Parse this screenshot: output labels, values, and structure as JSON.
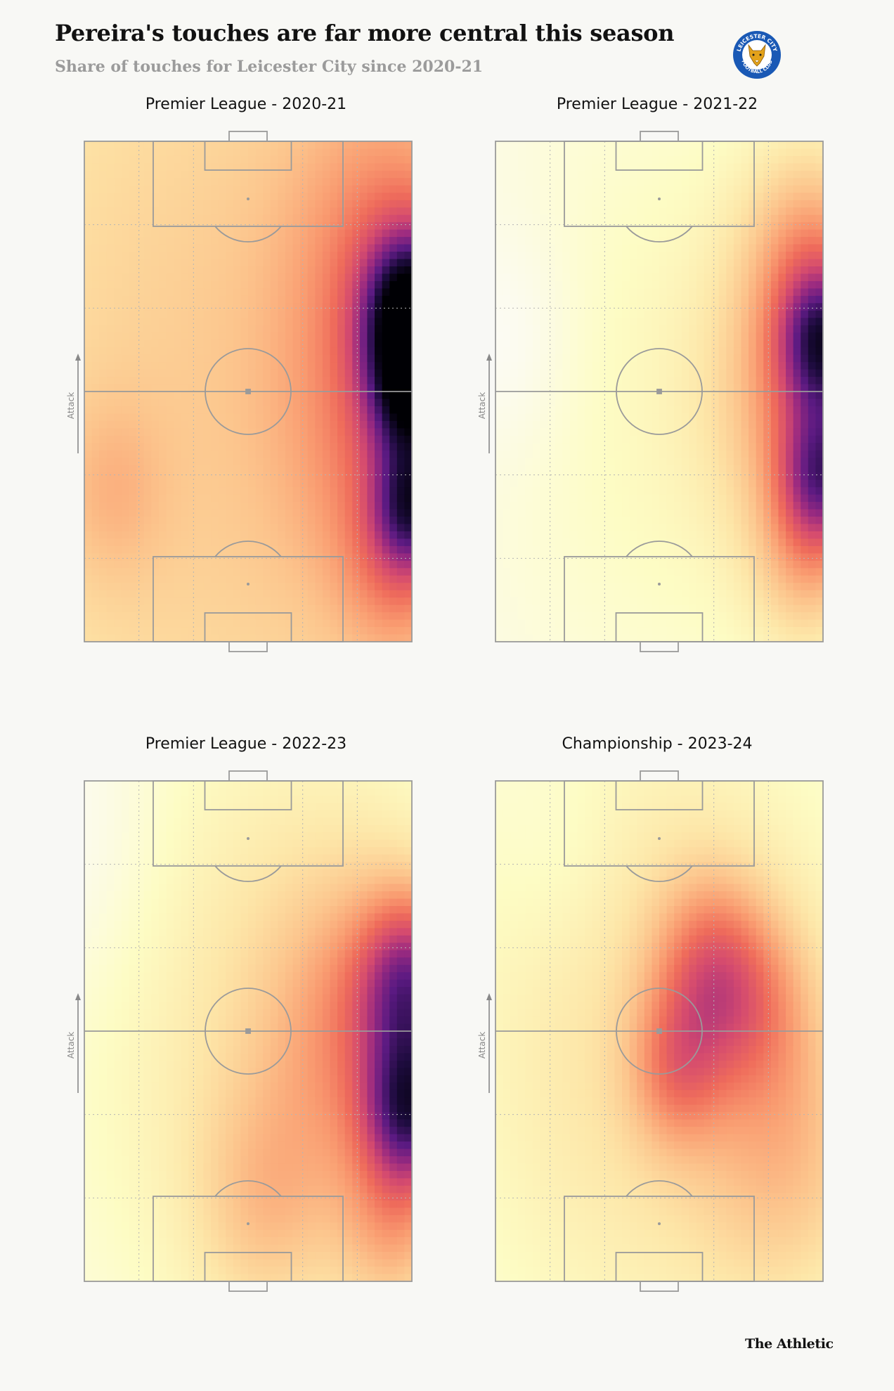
{
  "header": {
    "title": "Pereira's touches are far more central this season",
    "subtitle": "Share of touches for Leicester City since 2020-21"
  },
  "badge": {
    "label_top": "LEICESTER CITY",
    "label_bottom": "FOOTBALL CLUB",
    "colors": {
      "ring": "#1a59b5",
      "inner": "#ffffff",
      "fox": "#e3a21a"
    }
  },
  "colors": {
    "pitch_lines": "#9a9a9a",
    "colormap": [
      "#fcfbf3",
      "#fdfcc4",
      "#fde6a8",
      "#fcc58d",
      "#f99b70",
      "#ef6c5b",
      "#d44a6f",
      "#9c2b80",
      "#5b1a82",
      "#1c0b3c",
      "#000004"
    ]
  },
  "footer": {
    "brand": "The Athletic"
  },
  "chart_data": [
    {
      "type": "heatmap",
      "title": "Premier League - 2020-21",
      "direction_label": "Attack",
      "grid": "pitch zones (dotted)",
      "note": "normalized touch density; x across the pitch (0 = left touchline, 1 = right touchline), y along attack direction (0 = own goal, 1 = opponent goal)",
      "blobs": [
        {
          "x": 0.5,
          "y": 0.5,
          "intensity": 0.28,
          "spread": 0.9
        },
        {
          "x": 0.08,
          "y": 0.3,
          "intensity": 0.1,
          "spread": 0.12
        },
        {
          "x": 0.95,
          "y": 0.8,
          "intensity": 0.2,
          "spread": 0.22
        },
        {
          "x": 0.95,
          "y": 0.4,
          "intensity": 0.2,
          "spread": 0.22
        },
        {
          "x": 1.0,
          "y": 0.66,
          "intensity": 0.6,
          "spread": 0.1
        },
        {
          "x": 1.0,
          "y": 0.5,
          "intensity": 0.45,
          "spread": 0.09
        },
        {
          "x": 1.0,
          "y": 0.27,
          "intensity": 0.4,
          "spread": 0.08
        },
        {
          "x": 0.96,
          "y": 0.15,
          "intensity": 0.15,
          "spread": 0.12
        }
      ]
    },
    {
      "type": "heatmap",
      "title": "Premier League - 2021-22",
      "direction_label": "Attack",
      "grid": "pitch zones (dotted)",
      "blobs": [
        {
          "x": 0.6,
          "y": 0.5,
          "intensity": 0.12,
          "spread": 0.5
        },
        {
          "x": 0.98,
          "y": 0.5,
          "intensity": 0.35,
          "spread": 0.2
        },
        {
          "x": 1.0,
          "y": 0.6,
          "intensity": 0.45,
          "spread": 0.09
        },
        {
          "x": 1.0,
          "y": 0.33,
          "intensity": 0.42,
          "spread": 0.09
        },
        {
          "x": 0.96,
          "y": 0.8,
          "intensity": 0.2,
          "spread": 0.14
        },
        {
          "x": 0.95,
          "y": 0.15,
          "intensity": 0.18,
          "spread": 0.12
        },
        {
          "x": 0.05,
          "y": 0.6,
          "intensity": -0.06,
          "spread": 0.15
        }
      ]
    },
    {
      "type": "heatmap",
      "title": "Premier League - 2022-23",
      "direction_label": "Attack",
      "grid": "pitch zones (dotted)",
      "blobs": [
        {
          "x": 0.6,
          "y": 0.5,
          "intensity": 0.2,
          "spread": 0.5
        },
        {
          "x": 0.85,
          "y": 0.5,
          "intensity": 0.25,
          "spread": 0.2
        },
        {
          "x": 1.0,
          "y": 0.6,
          "intensity": 0.45,
          "spread": 0.11
        },
        {
          "x": 1.0,
          "y": 0.34,
          "intensity": 0.55,
          "spread": 0.1
        },
        {
          "x": 0.95,
          "y": 0.1,
          "intensity": 0.2,
          "spread": 0.12
        },
        {
          "x": 0.55,
          "y": 0.15,
          "intensity": 0.15,
          "spread": 0.15
        },
        {
          "x": 0.0,
          "y": 0.85,
          "intensity": -0.06,
          "spread": 0.2
        }
      ]
    },
    {
      "type": "heatmap",
      "title": "Championship - 2023-24",
      "direction_label": "Attack",
      "grid": "pitch zones (dotted)",
      "blobs": [
        {
          "x": 0.5,
          "y": 0.5,
          "intensity": 0.22,
          "spread": 0.5
        },
        {
          "x": 0.65,
          "y": 0.62,
          "intensity": 0.28,
          "spread": 0.12
        },
        {
          "x": 0.55,
          "y": 0.42,
          "intensity": 0.22,
          "spread": 0.1
        },
        {
          "x": 0.8,
          "y": 0.55,
          "intensity": 0.18,
          "spread": 0.13
        },
        {
          "x": 0.9,
          "y": 0.25,
          "intensity": 0.18,
          "spread": 0.2
        },
        {
          "x": 0.2,
          "y": 0.85,
          "intensity": -0.05,
          "spread": 0.15
        }
      ]
    }
  ]
}
